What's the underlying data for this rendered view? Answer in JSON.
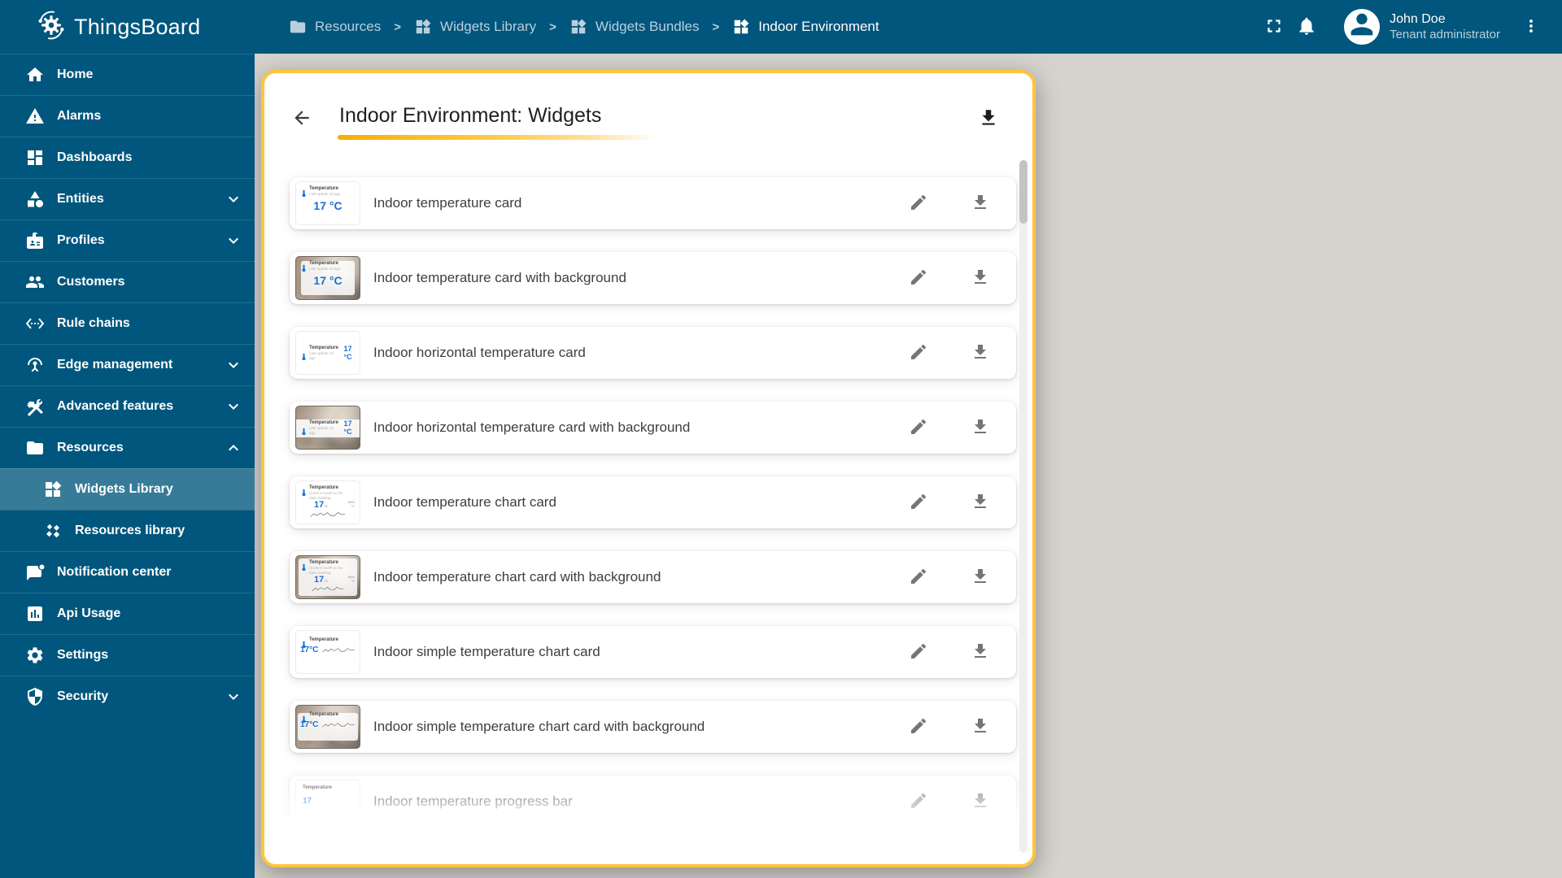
{
  "app": {
    "name": "ThingsBoard"
  },
  "colors": {
    "sidebar_blue": "#00567d",
    "highlight_amber": "#ffc53d",
    "accent_blue": "#1a6fd4",
    "icon_gray": "#757575",
    "content_backdrop": "#d6d3cd"
  },
  "sidebar": {
    "items": [
      {
        "label": "Home",
        "icon": "home"
      },
      {
        "label": "Alarms",
        "icon": "warning"
      },
      {
        "label": "Dashboards",
        "icon": "dashboards"
      },
      {
        "label": "Entities",
        "icon": "entities",
        "chevron": "down"
      },
      {
        "label": "Profiles",
        "icon": "profiles",
        "chevron": "down"
      },
      {
        "label": "Customers",
        "icon": "customers"
      },
      {
        "label": "Rule chains",
        "icon": "rule-chains"
      },
      {
        "label": "Edge management",
        "icon": "edge",
        "chevron": "down"
      },
      {
        "label": "Advanced features",
        "icon": "advanced",
        "chevron": "down"
      },
      {
        "label": "Resources",
        "icon": "folder",
        "chevron": "up"
      },
      {
        "label": "Widgets Library",
        "icon": "widgets",
        "nested": true,
        "active": true
      },
      {
        "label": "Resources library",
        "icon": "resources-lib",
        "nested": true
      },
      {
        "label": "Notification center",
        "icon": "notification"
      },
      {
        "label": "Api Usage",
        "icon": "api-usage"
      },
      {
        "label": "Settings",
        "icon": "settings"
      },
      {
        "label": "Security",
        "icon": "security",
        "chevron": "down"
      }
    ]
  },
  "header": {
    "breadcrumbs": [
      {
        "label": "Resources",
        "icon": "folder"
      },
      {
        "label": "Widgets Library",
        "icon": "widgets"
      },
      {
        "label": "Widgets Bundles",
        "icon": "widgets"
      },
      {
        "label": "Indoor Environment",
        "icon": "widgets"
      }
    ],
    "separator": ">",
    "user": {
      "name": "John Doe",
      "role": "Tenant administrator"
    }
  },
  "panel": {
    "title": "Indoor Environment: Widgets",
    "preview": {
      "title": "Temperature",
      "last_update": "Last update 1d ago",
      "value": "17 °C",
      "value_num": "17",
      "unit": "°C",
      "value_compact": "17°C",
      "delta": "-56%",
      "sub1": "Current month so far",
      "sub2": "Main building"
    },
    "rows": [
      {
        "label": "Indoor temperature card",
        "variant": "card"
      },
      {
        "label": "Indoor temperature card with background",
        "variant": "card-bg"
      },
      {
        "label": "Indoor horizontal temperature card",
        "variant": "horizontal"
      },
      {
        "label": "Indoor horizontal temperature card with background",
        "variant": "horizontal-bg"
      },
      {
        "label": "Indoor temperature chart card",
        "variant": "chart"
      },
      {
        "label": "Indoor temperature chart card with background",
        "variant": "chart-bg"
      },
      {
        "label": "Indoor simple temperature chart card",
        "variant": "simple-chart"
      },
      {
        "label": "Indoor simple temperature chart card with background",
        "variant": "simple-chart-bg"
      },
      {
        "label": "Indoor temperature progress bar",
        "variant": "progress"
      }
    ]
  }
}
